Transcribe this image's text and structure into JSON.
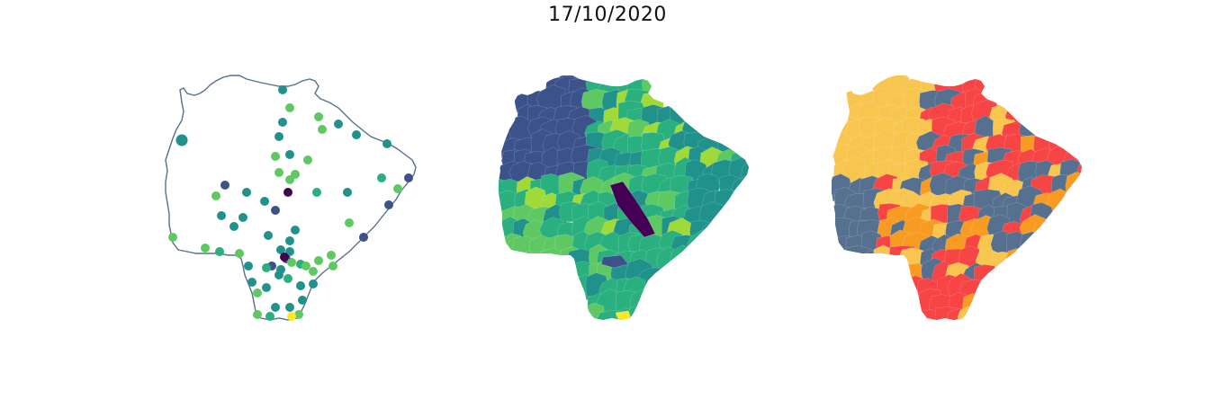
{
  "figure": {
    "title": "17/10/2020"
  },
  "palette": {
    "viridis": [
      "#440154",
      "#3b528b",
      "#21918c",
      "#2ab07f",
      "#5ec962",
      "#a0da39",
      "#fde725"
    ],
    "risk": [
      "#56708f",
      "#f8c54f",
      "#f89b22",
      "#f74444"
    ]
  },
  "maps": [
    {
      "kind": "points",
      "outline_color": "#56708f"
    },
    {
      "kind": "choropleth"
    },
    {
      "kind": "choropleth"
    }
  ]
}
